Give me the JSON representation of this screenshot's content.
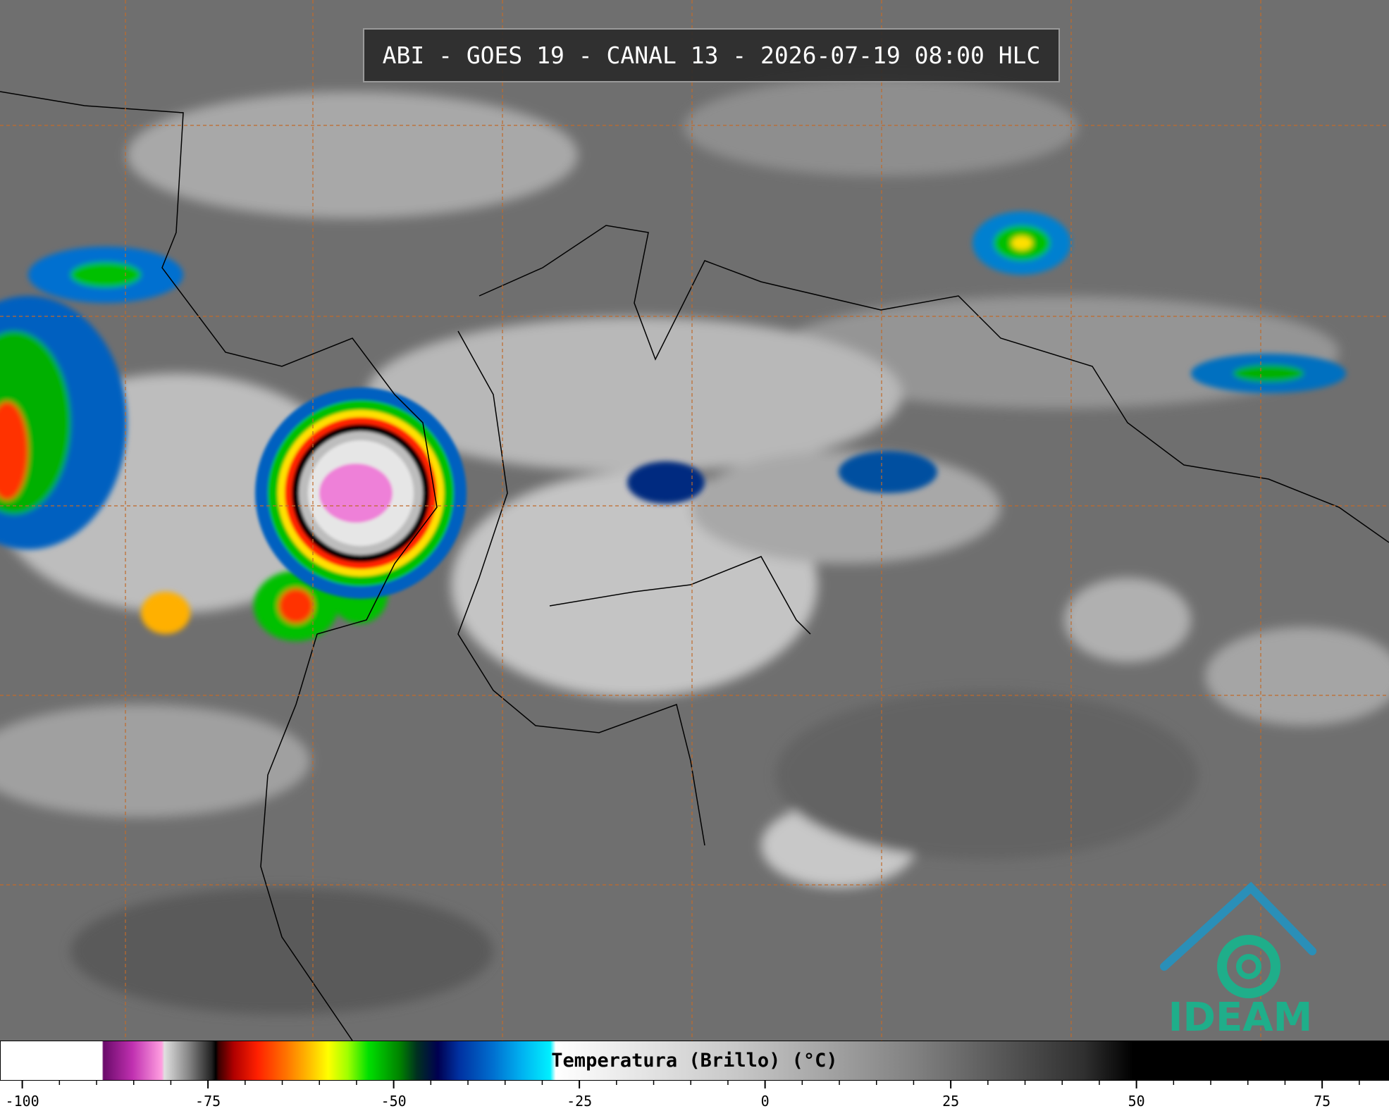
{
  "title": "ABI - GOES 19 - CANAL 13 - 2026-07-19 08:00 HLC",
  "colorbar": {
    "label": "Temperatura (Brillo) (°C)",
    "lim": [
      -103,
      84
    ],
    "ticks": [
      -100,
      -75,
      -50,
      -25,
      0,
      25,
      50,
      75
    ]
  },
  "logo": {
    "text": "IDEAM"
  }
}
